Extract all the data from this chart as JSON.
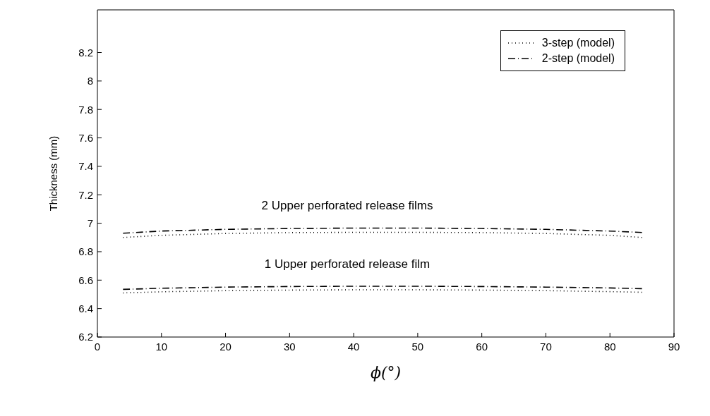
{
  "chart_data": {
    "type": "line",
    "xlabel": "ϕ(°)",
    "ylabel": "Thickness (mm)",
    "x": [
      4,
      10,
      20,
      30,
      40,
      50,
      60,
      70,
      80,
      85
    ],
    "xlim": [
      0,
      90
    ],
    "xticks": [
      0,
      10,
      20,
      30,
      40,
      50,
      60,
      70,
      80,
      90
    ],
    "ylim": [
      6.2,
      8.5
    ],
    "yticks": [
      6.2,
      6.4,
      6.6,
      6.8,
      7,
      7.2,
      7.4,
      7.6,
      7.8,
      8,
      8.2
    ],
    "grid": false,
    "legend": "top right",
    "marker": "none",
    "series": [
      {
        "name": "3-step (model)",
        "color": "#000000",
        "line_style": "dotted",
        "values": [
          6.9,
          6.915,
          6.928,
          6.934,
          6.936,
          6.936,
          6.934,
          6.928,
          6.915,
          6.9
        ]
      },
      {
        "name": "2-step (model)",
        "color": "#000000",
        "line_style": "dashdot",
        "values": [
          6.93,
          6.945,
          6.957,
          6.963,
          6.966,
          6.966,
          6.963,
          6.957,
          6.945,
          6.935
        ]
      },
      {
        "color": "#000000",
        "line_style": "dotted",
        "values": [
          6.51,
          6.518,
          6.526,
          6.53,
          6.532,
          6.532,
          6.53,
          6.526,
          6.519,
          6.515
        ]
      },
      {
        "color": "#000000",
        "line_style": "dashdot",
        "values": [
          6.535,
          6.543,
          6.551,
          6.555,
          6.557,
          6.557,
          6.555,
          6.551,
          6.545,
          6.54
        ]
      }
    ],
    "annotations": [
      "2 Upper perforated release films",
      "1 Upper perforated release film"
    ]
  }
}
